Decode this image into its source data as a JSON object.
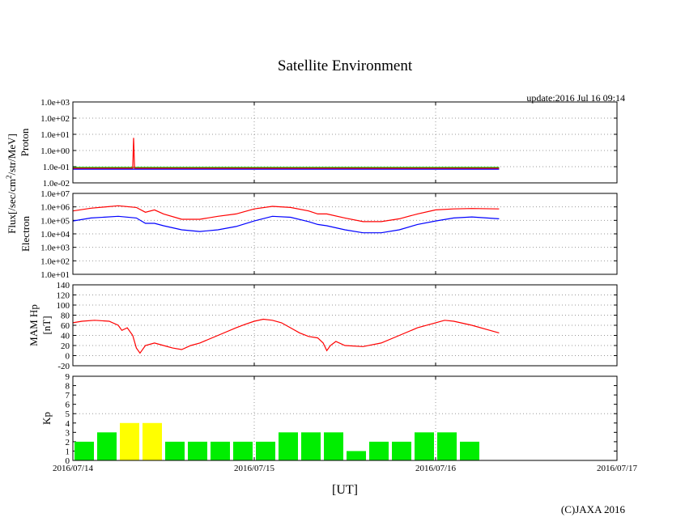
{
  "title": "Satellite Environment",
  "update": "update:2016 Jul 16 09:14",
  "copyright": "(C)JAXA 2016",
  "x_axis": {
    "label": "[UT]",
    "ticks": [
      "2016/07/14",
      "2016/07/15",
      "2016/07/16",
      "2016/07/17"
    ],
    "range_days": [
      0,
      3
    ]
  },
  "flux_label": {
    "main": "Flux[/sec/cm",
    "sup": "2",
    "rest": "/str/MeV]"
  },
  "colors": {
    "red": "#ff0000",
    "green": "#00cc00",
    "blue": "#0000ff",
    "kp_green": "#00ee00",
    "kp_yellow": "#ffff00",
    "grid": "#999999"
  },
  "chart_data": [
    {
      "name": "proton",
      "type": "line",
      "ylabel": "Proton",
      "yscale": "log",
      "ylim_exp": [
        -2,
        3
      ],
      "yticks": [
        "1.0e-02",
        "1.0e-01",
        "1.0e+00",
        "1.0e+01",
        "1.0e+02",
        "1.0e+03"
      ],
      "series": [
        {
          "name": "green",
          "color": "green",
          "x": [
            0,
            2.35
          ],
          "y": [
            0.09,
            0.09
          ]
        },
        {
          "name": "blue",
          "color": "blue",
          "x": [
            0,
            2.35
          ],
          "y": [
            0.07,
            0.07
          ]
        },
        {
          "name": "red",
          "color": "red",
          "x": [
            0,
            0.33,
            0.335,
            0.34,
            2.35
          ],
          "y": [
            0.08,
            0.08,
            6.0,
            0.08,
            0.08
          ]
        }
      ]
    },
    {
      "name": "electron",
      "type": "line",
      "ylabel": "Electron",
      "yscale": "log",
      "ylim_exp": [
        1,
        7
      ],
      "yticks": [
        "1.0e+01",
        "1.0e+02",
        "1.0e+03",
        "1.0e+04",
        "1.0e+05",
        "1.0e+06",
        "1.0e+07"
      ],
      "series": [
        {
          "name": "red",
          "color": "red",
          "x": [
            0,
            0.1,
            0.25,
            0.35,
            0.4,
            0.45,
            0.5,
            0.6,
            0.7,
            0.8,
            0.9,
            1.0,
            1.1,
            1.2,
            1.3,
            1.35,
            1.4,
            1.5,
            1.6,
            1.7,
            1.8,
            1.9,
            2.0,
            2.1,
            2.2,
            2.35
          ],
          "y": [
            500000,
            800000,
            1200000,
            900000,
            400000,
            600000,
            300000,
            120000,
            120000,
            200000,
            300000,
            700000,
            1100000,
            900000,
            500000,
            300000,
            300000,
            150000,
            80000,
            80000,
            130000,
            300000,
            600000,
            700000,
            750000,
            700000
          ]
        },
        {
          "name": "blue",
          "color": "blue",
          "x": [
            0,
            0.1,
            0.25,
            0.35,
            0.4,
            0.45,
            0.5,
            0.6,
            0.7,
            0.8,
            0.9,
            1.0,
            1.1,
            1.2,
            1.3,
            1.35,
            1.4,
            1.5,
            1.6,
            1.7,
            1.8,
            1.9,
            2.0,
            2.1,
            2.2,
            2.35
          ],
          "y": [
            90000,
            150000,
            200000,
            150000,
            60000,
            60000,
            40000,
            20000,
            15000,
            20000,
            35000,
            90000,
            200000,
            170000,
            80000,
            50000,
            40000,
            20000,
            12000,
            12000,
            20000,
            50000,
            90000,
            150000,
            180000,
            130000
          ]
        }
      ]
    },
    {
      "name": "mam-hp",
      "type": "line",
      "ylabel": [
        "MAM Hp",
        "[nT]"
      ],
      "ylim": [
        -20,
        140
      ],
      "yticks": [
        -20,
        0,
        20,
        40,
        60,
        80,
        100,
        120,
        140
      ],
      "series": [
        {
          "name": "red",
          "color": "red",
          "x": [
            0,
            0.05,
            0.12,
            0.2,
            0.25,
            0.27,
            0.3,
            0.33,
            0.35,
            0.37,
            0.38,
            0.4,
            0.45,
            0.5,
            0.55,
            0.6,
            0.65,
            0.7,
            0.8,
            0.9,
            0.95,
            1.0,
            1.05,
            1.1,
            1.15,
            1.2,
            1.25,
            1.3,
            1.35,
            1.38,
            1.4,
            1.42,
            1.45,
            1.5,
            1.6,
            1.7,
            1.8,
            1.9,
            2.0,
            2.05,
            2.1,
            2.2,
            2.3,
            2.35
          ],
          "y": [
            65,
            68,
            70,
            68,
            60,
            50,
            55,
            40,
            15,
            5,
            10,
            20,
            25,
            20,
            15,
            12,
            20,
            25,
            40,
            55,
            62,
            68,
            72,
            70,
            65,
            55,
            45,
            38,
            35,
            25,
            10,
            20,
            28,
            20,
            18,
            25,
            40,
            55,
            65,
            70,
            68,
            60,
            50,
            45
          ]
        }
      ]
    },
    {
      "name": "kp",
      "type": "bar",
      "ylabel": "Kp",
      "ylim": [
        0,
        9
      ],
      "yticks": [
        0,
        1,
        2,
        3,
        4,
        5,
        6,
        7,
        8,
        9
      ],
      "bar_width_days": 0.125,
      "values": [
        2,
        3,
        4,
        4,
        2,
        2,
        2,
        2,
        2,
        3,
        3,
        3,
        1,
        2,
        2,
        3,
        3,
        2
      ],
      "bar_colors": [
        "kp_green",
        "kp_green",
        "kp_yellow",
        "kp_yellow",
        "kp_green",
        "kp_green",
        "kp_green",
        "kp_green",
        "kp_green",
        "kp_green",
        "kp_green",
        "kp_green",
        "kp_green",
        "kp_green",
        "kp_green",
        "kp_green",
        "kp_green",
        "kp_green"
      ]
    }
  ]
}
